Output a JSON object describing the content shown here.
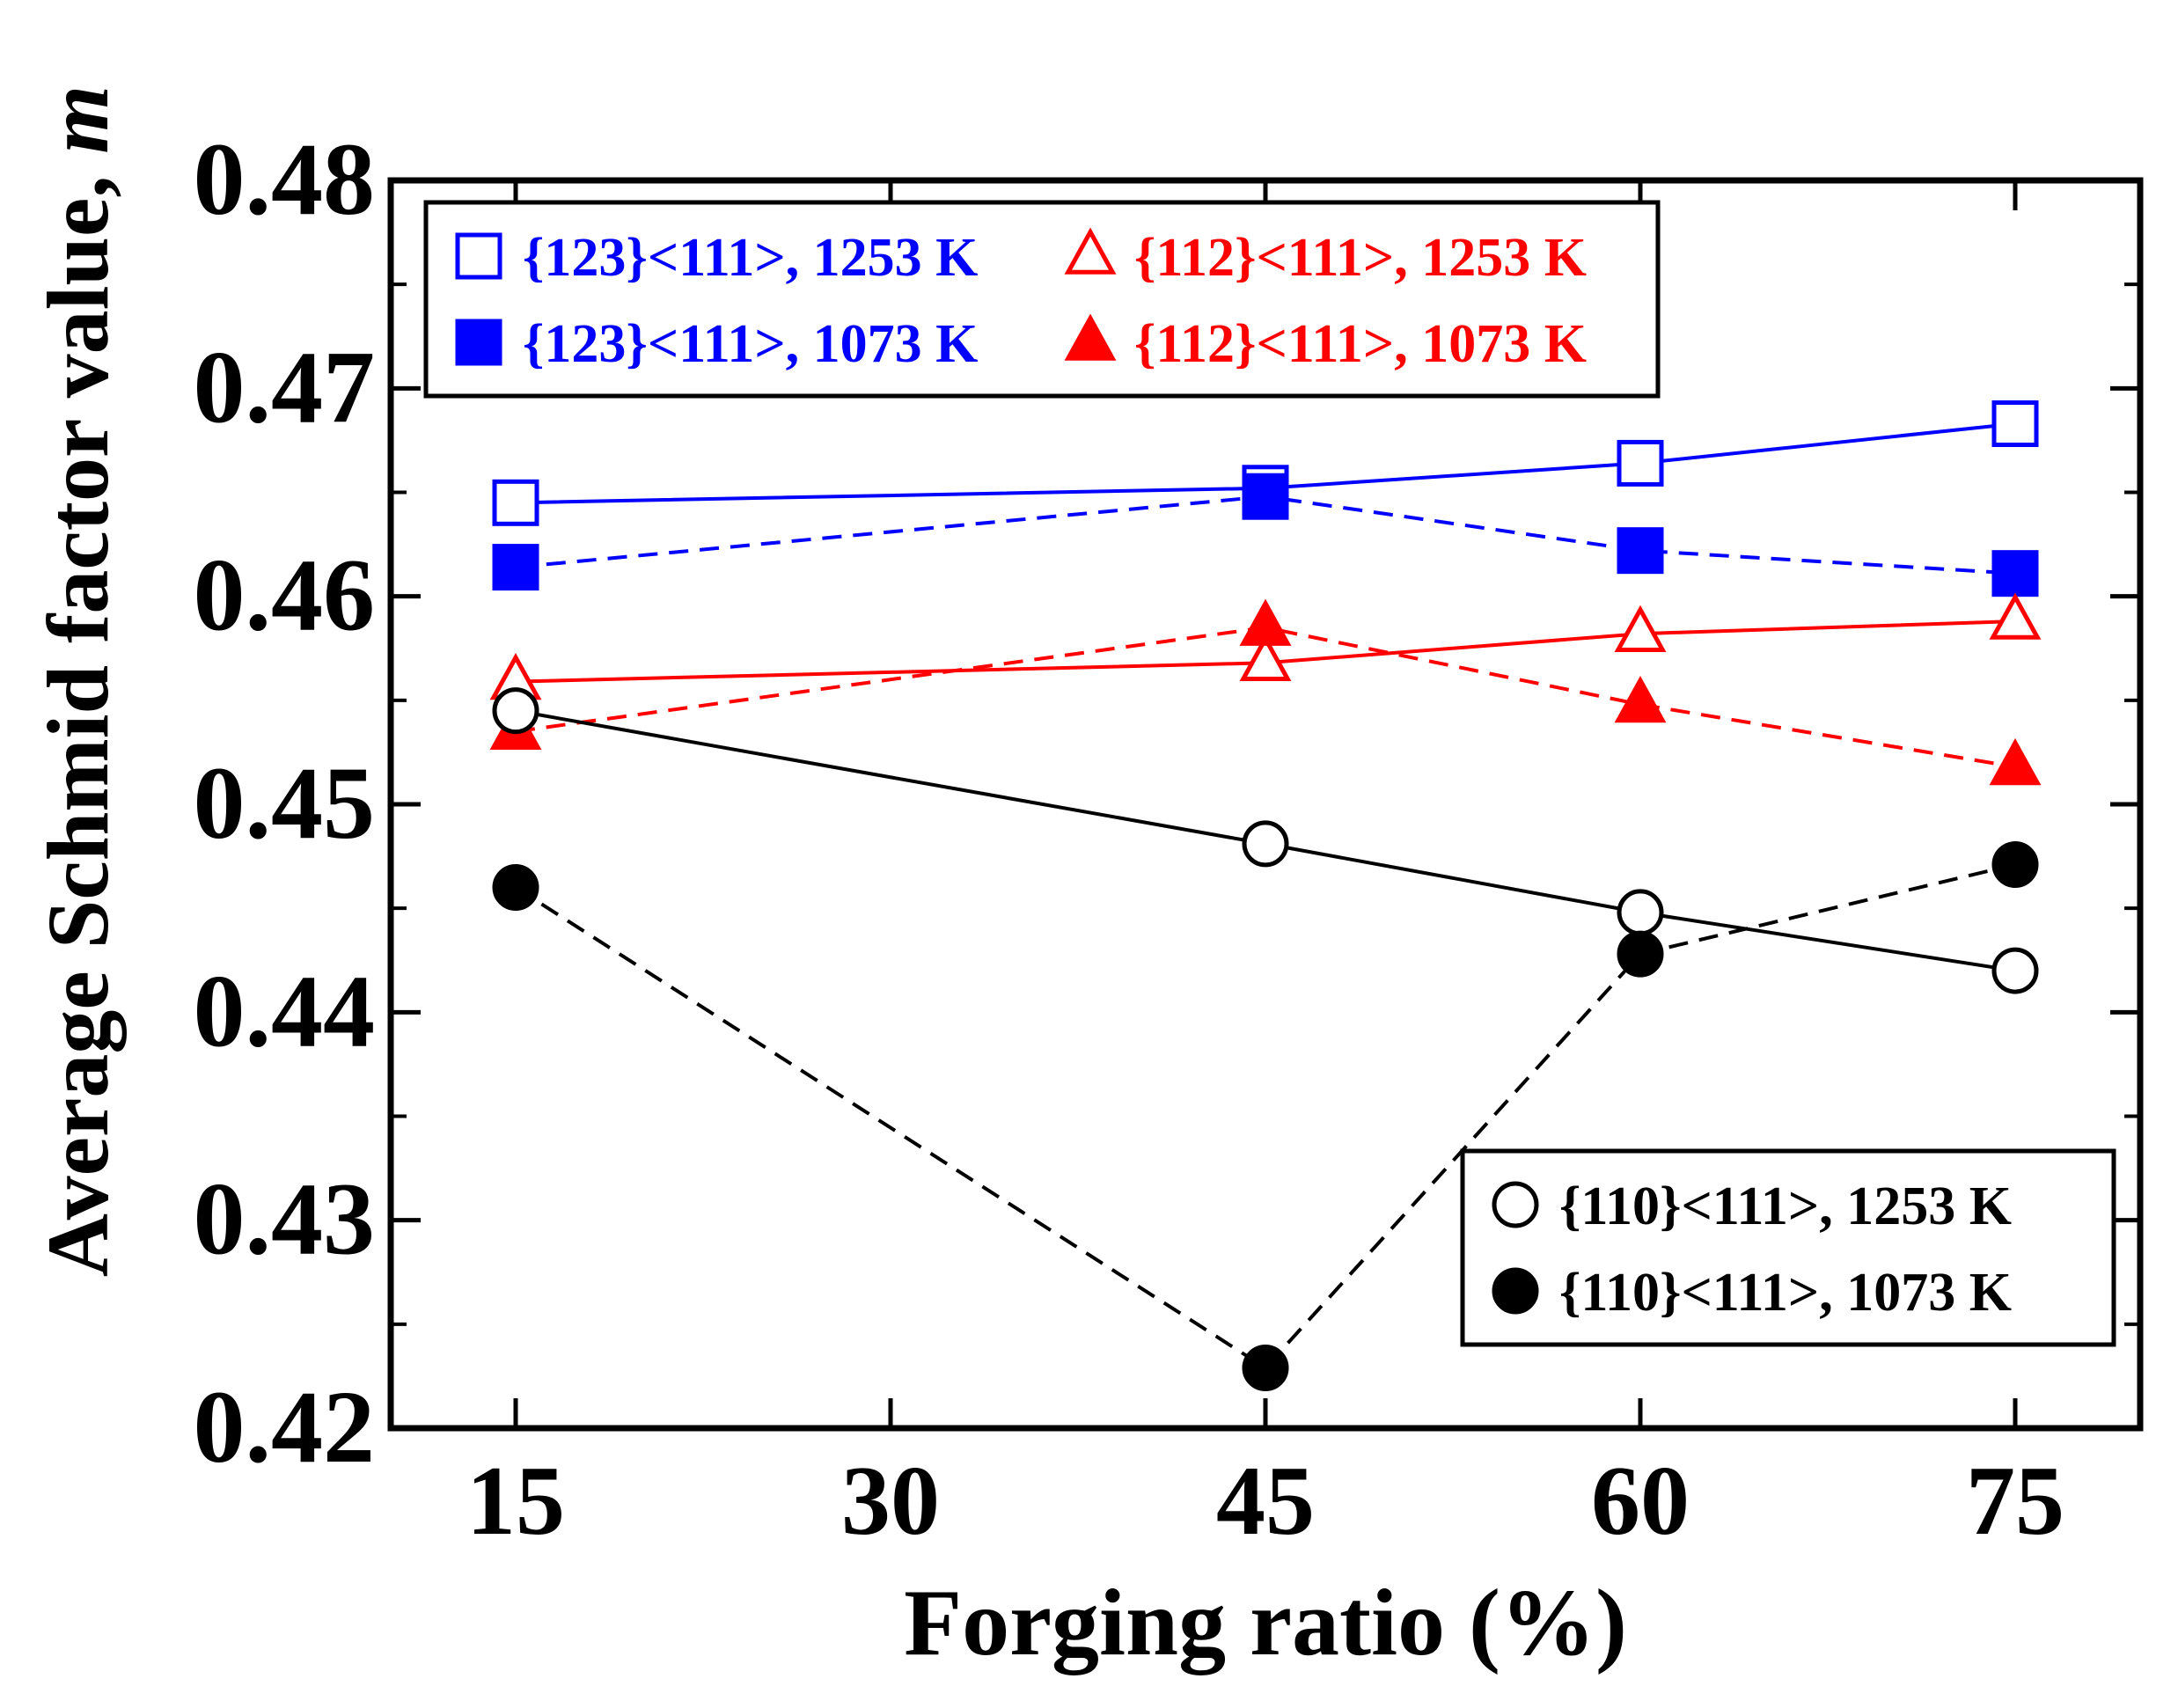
{
  "chart_data": {
    "type": "line",
    "title": "",
    "xlabel": "Forging ratio (%)",
    "ylabel": "Average Schmid factor value, ",
    "ylabel_symbol": "m",
    "x": [
      15,
      45,
      60,
      75
    ],
    "xlim": [
      10,
      80
    ],
    "ylim": [
      0.42,
      0.48
    ],
    "xticks": [
      15,
      30,
      45,
      60,
      75
    ],
    "xtick_labels": [
      "15",
      "30",
      "45",
      "60",
      "75"
    ],
    "yticks": [
      0.42,
      0.43,
      0.44,
      0.45,
      0.46,
      0.47,
      0.48
    ],
    "ytick_labels": [
      "0.42",
      "0.43",
      "0.44",
      "0.45",
      "0.46",
      "0.47",
      "0.48"
    ],
    "grid": false,
    "series": [
      {
        "name": "{123}<111>, 1253 K",
        "color": "#0000ff",
        "marker": "square",
        "filled": false,
        "line": "solid",
        "values": [
          0.4645,
          0.4652,
          0.4664,
          0.4683
        ]
      },
      {
        "name": "{123}<111>, 1073 K",
        "color": "#0000ff",
        "marker": "square",
        "filled": true,
        "line": "dashed",
        "values": [
          0.4614,
          0.4648,
          0.4622,
          0.4611
        ]
      },
      {
        "name": "{112}<111>, 1253 K",
        "color": "#ff0000",
        "marker": "triangle",
        "filled": false,
        "line": "solid",
        "values": [
          0.4559,
          0.4568,
          0.4582,
          0.4588
        ]
      },
      {
        "name": "{112}<111>, 1073 K",
        "color": "#ff0000",
        "marker": "triangle",
        "filled": true,
        "line": "dashed",
        "values": [
          0.4535,
          0.4585,
          0.4548,
          0.4518
        ]
      },
      {
        "name": "{110}<111>, 1253 K",
        "color": "#000000",
        "marker": "circle",
        "filled": false,
        "line": "solid",
        "values": [
          0.4545,
          0.4481,
          0.4448,
          0.442
        ]
      },
      {
        "name": "{110}<111>, 1073 K",
        "color": "#000000",
        "marker": "circle",
        "filled": true,
        "line": "dashed",
        "values": [
          0.446,
          0.4229,
          0.4428,
          0.4471
        ]
      }
    ],
    "legends": [
      {
        "placement": "top-left",
        "series_order": [
          0,
          2,
          1,
          3
        ],
        "columns": 2
      },
      {
        "placement": "bottom-right",
        "series_order": [
          4,
          5
        ],
        "columns": 1
      }
    ]
  }
}
